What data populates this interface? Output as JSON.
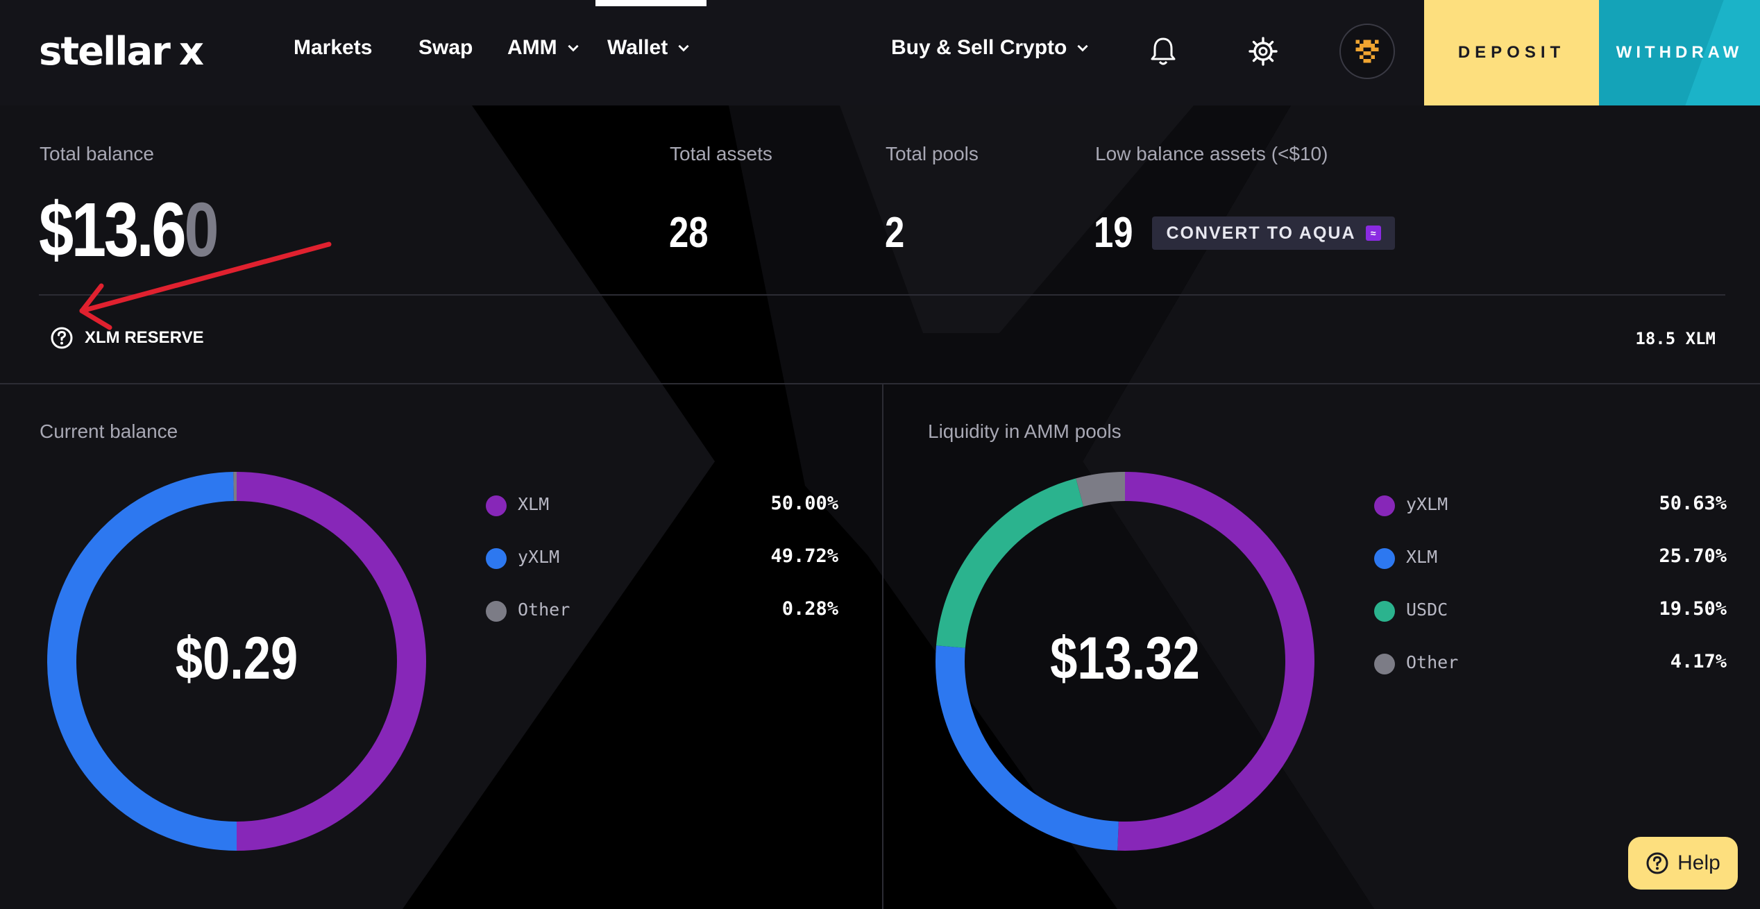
{
  "brand": {
    "name": "stellar",
    "mark": "x"
  },
  "nav": {
    "items": [
      {
        "label": "Markets"
      },
      {
        "label": "Swap"
      },
      {
        "label": "AMM"
      },
      {
        "label": "Wallet"
      }
    ],
    "buy_sell": "Buy & Sell Crypto",
    "deposit": "DEPOSIT",
    "withdraw": "WITHDRAW",
    "icons": [
      "bell-icon",
      "gear-icon",
      "avatar"
    ]
  },
  "summary": {
    "total_balance_label": "Total balance",
    "total_balance_main": "$13.6",
    "total_balance_tail": "0",
    "total_assets_label": "Total assets",
    "total_assets": "28",
    "total_pools_label": "Total pools",
    "total_pools": "2",
    "low_balance_label": "Low balance assets (<$10)",
    "low_balance": "19",
    "convert_label": "CONVERT TO AQUA",
    "reserve_label": "XLM RESERVE",
    "reserve_value": "18.5 XLM"
  },
  "current_balance": {
    "title": "Current balance",
    "value": "$0.29",
    "items": [
      {
        "name": "XLM",
        "pct": "50.00%",
        "share": 50.0,
        "color": "#8727b8"
      },
      {
        "name": "yXLM",
        "pct": "49.72%",
        "share": 49.72,
        "color": "#2d78f0"
      },
      {
        "name": "Other",
        "pct": "0.28%",
        "share": 0.28,
        "color": "#7c7c86"
      }
    ]
  },
  "amm": {
    "title": "Liquidity in AMM pools",
    "value": "$13.32",
    "items": [
      {
        "name": "yXLM",
        "pct": "50.63%",
        "share": 50.63,
        "color": "#8727b8"
      },
      {
        "name": "XLM",
        "pct": "25.70%",
        "share": 25.7,
        "color": "#2d78f0"
      },
      {
        "name": "USDC",
        "pct": "19.50%",
        "share": 19.5,
        "color": "#2bb38e"
      },
      {
        "name": "Other",
        "pct": "4.17%",
        "share": 4.17,
        "color": "#7c7c86"
      }
    ]
  },
  "help": {
    "label": "Help"
  },
  "colors": {
    "accent_yellow": "#fddf7e",
    "accent_teal": "#14a3b8",
    "arrow_red": "#e0212f"
  }
}
